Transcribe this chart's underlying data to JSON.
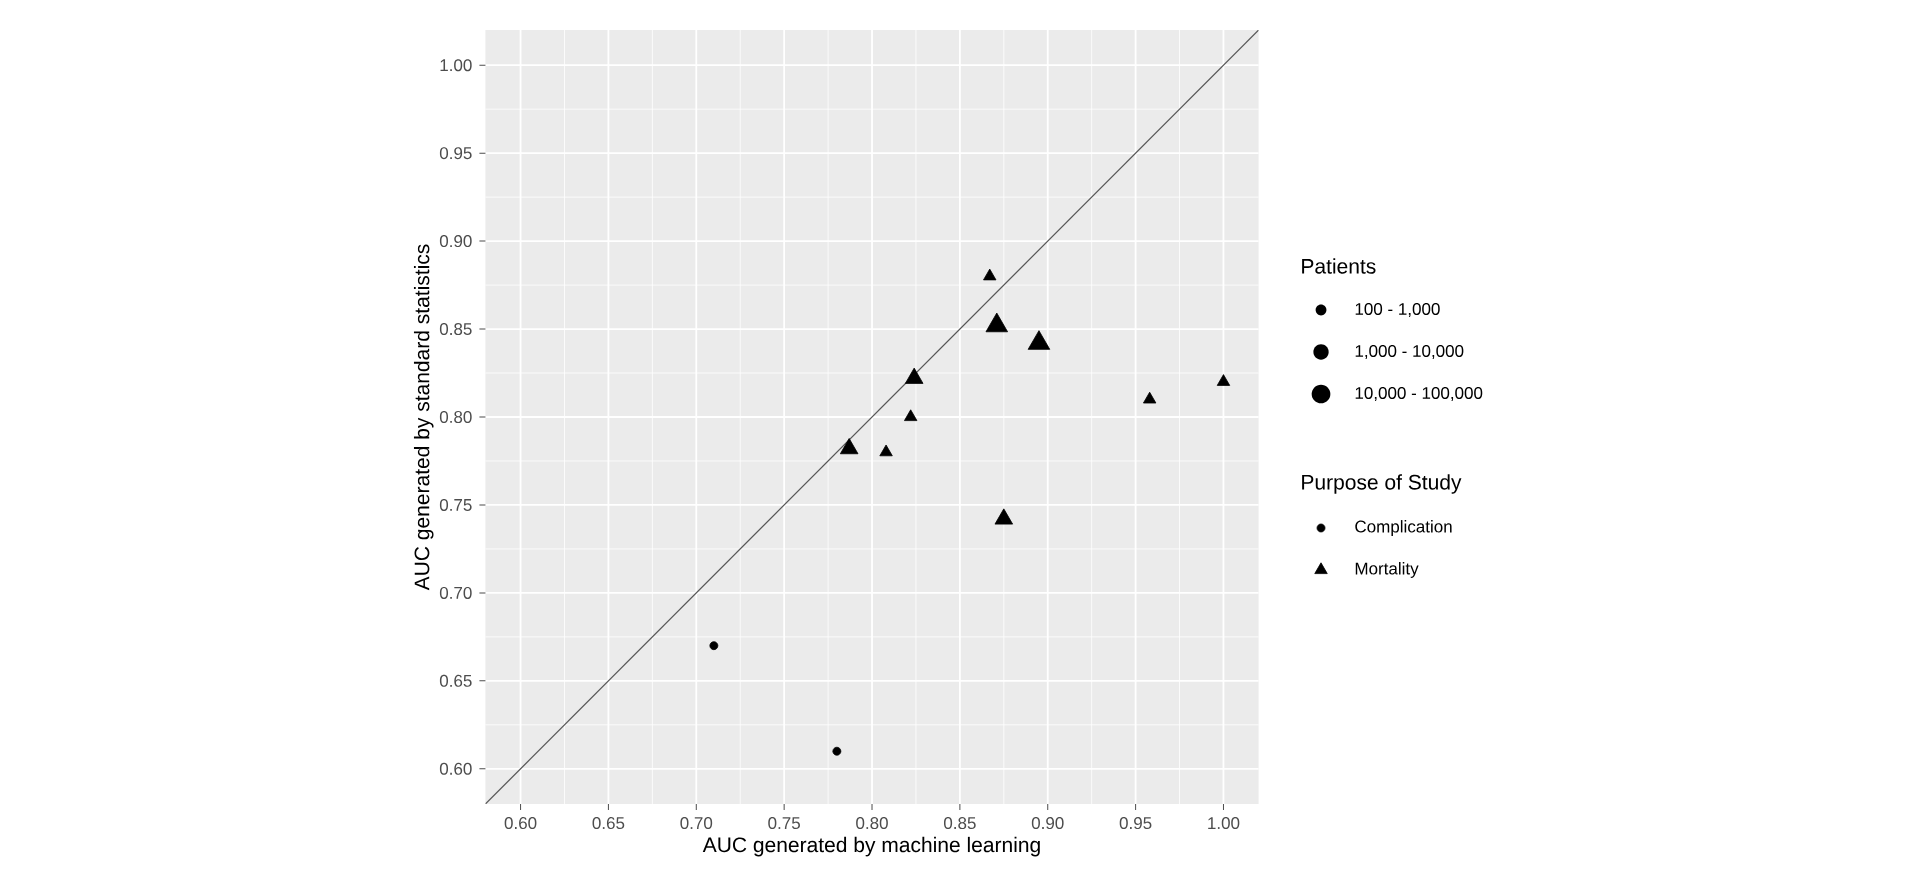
{
  "chart_data": {
    "type": "bubble",
    "xlabel": "AUC generated by machine learning",
    "ylabel": "AUC generated by standard statistics",
    "xlim": [
      0.58,
      1.02
    ],
    "ylim": [
      0.58,
      1.02
    ],
    "xticks": [
      {
        "value": 0.6,
        "label": "0.60"
      },
      {
        "value": 0.65,
        "label": "0.65"
      },
      {
        "value": 0.7,
        "label": "0.70"
      },
      {
        "value": 0.75,
        "label": "0.75"
      },
      {
        "value": 0.8,
        "label": "0.80"
      },
      {
        "value": 0.85,
        "label": "0.85"
      },
      {
        "value": 0.9,
        "label": "0.90"
      },
      {
        "value": 0.95,
        "label": "0.95"
      },
      {
        "value": 1.0,
        "label": "1.00"
      }
    ],
    "yticks": [
      {
        "value": 0.6,
        "label": "0.60"
      },
      {
        "value": 0.65,
        "label": "0.65"
      },
      {
        "value": 0.7,
        "label": "0.70"
      },
      {
        "value": 0.75,
        "label": "0.75"
      },
      {
        "value": 0.8,
        "label": "0.80"
      },
      {
        "value": 0.85,
        "label": "0.85"
      },
      {
        "value": 0.9,
        "label": "0.90"
      },
      {
        "value": 0.95,
        "label": "0.95"
      },
      {
        "value": 1.0,
        "label": "1.00"
      }
    ],
    "grid": true,
    "legend": "right",
    "legend_title": [
      "Patients",
      "Purpose of Study"
    ],
    "size_legend": [
      {
        "value": 1,
        "label": "100 - 1,000"
      },
      {
        "value": 2,
        "label": "1,000 - 10,000"
      },
      {
        "value": 3,
        "label": "10,000 - 100,000"
      }
    ],
    "series": [
      {
        "type": "line",
        "color": "#555555",
        "line_style": "solid",
        "marker": "none",
        "x": [
          0.58,
          1.02
        ],
        "values": [
          0.58,
          1.02
        ]
      },
      {
        "name": "Complication",
        "color": "#000000",
        "marker": "circle",
        "x": [
          0.71,
          0.78
        ],
        "values": [
          0.67,
          0.61
        ],
        "sizes": [
          1,
          1
        ]
      },
      {
        "name": "Mortality",
        "color": "#000000",
        "marker": "triangle",
        "x": [
          0.867,
          0.871,
          0.895,
          0.824,
          0.822,
          0.787,
          0.808,
          0.875,
          0.958,
          1.0
        ],
        "values": [
          0.88,
          0.852,
          0.842,
          0.822,
          0.8,
          0.782,
          0.78,
          0.742,
          0.81,
          0.82
        ],
        "sizes": [
          1,
          3,
          3,
          2,
          1,
          2,
          1,
          2,
          1,
          1
        ]
      }
    ]
  }
}
